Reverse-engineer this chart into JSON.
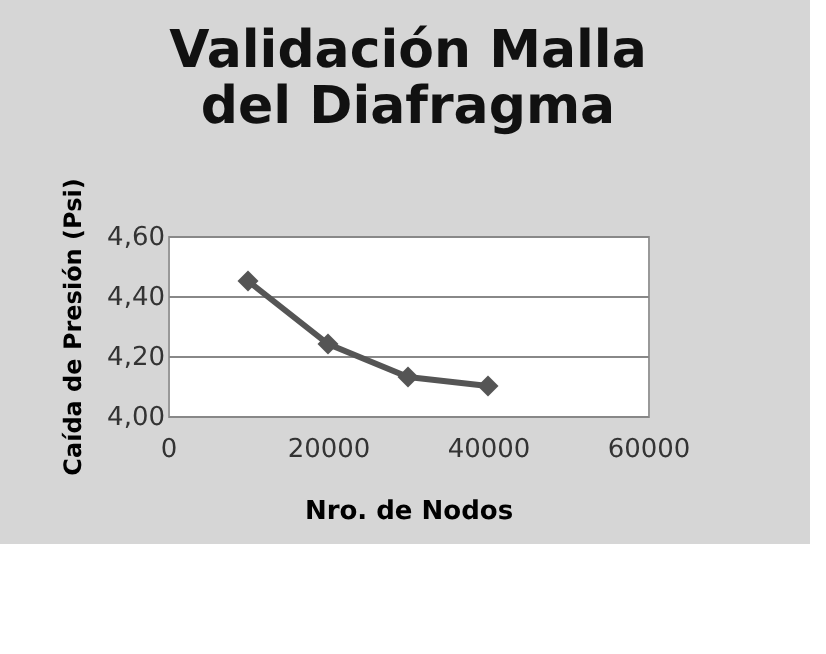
{
  "chart_data": {
    "type": "line",
    "title": [
      "Validación Malla",
      "del Diafragma"
    ],
    "xlabel": "Nro. de Nodos",
    "ylabel": "Caída de Presión (Psi)",
    "x": [
      10000,
      20000,
      30000,
      40000
    ],
    "series": [
      {
        "color": "#555555",
        "values": [
          4.45,
          4.24,
          4.13,
          4.1
        ]
      }
    ],
    "xlim": [
      0,
      60000
    ],
    "xticks": [
      0,
      20000,
      40000,
      60000
    ],
    "ylim": [
      4.0,
      4.6
    ],
    "yticks": [
      {
        "value": 4.0,
        "label": "4,00"
      },
      {
        "value": 4.2,
        "label": "4,20"
      },
      {
        "value": 4.4,
        "label": "4,40"
      },
      {
        "value": 4.6,
        "label": "4,60"
      }
    ],
    "grid": "y",
    "marker": "diamond",
    "line_style": "solid"
  }
}
